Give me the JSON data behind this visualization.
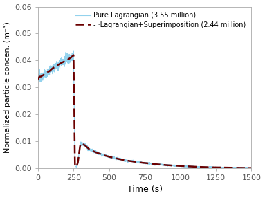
{
  "title": "",
  "xlabel": "Time (s)",
  "ylabel": "Normalized particle concen. (m⁻³)",
  "xlim": [
    0,
    1500
  ],
  "ylim": [
    0,
    0.06
  ],
  "yticks": [
    0.0,
    0.01,
    0.02,
    0.03,
    0.04,
    0.05,
    0.06
  ],
  "xticks": [
    0,
    250,
    500,
    750,
    1000,
    1250,
    1500
  ],
  "legend": [
    {
      "label": "Pure Lagrangian (3.55 million)",
      "color": "#87CEEB",
      "linestyle": "-",
      "linewidth": 0.8
    },
    {
      "label": "- ·Lagrangian+Superimposition (2.44 million)",
      "color": "#6B0000",
      "linestyle": "--",
      "linewidth": 1.8
    }
  ],
  "smooth_curve": {
    "t": [
      0,
      10,
      20,
      50,
      80,
      100,
      130,
      160,
      200,
      230,
      250,
      255,
      258,
      260,
      265,
      270,
      280,
      290,
      295,
      300,
      310,
      330,
      360,
      400,
      450,
      500,
      600,
      700,
      800,
      900,
      1000,
      1100,
      1200,
      1300,
      1400,
      1500
    ],
    "y": [
      0.033,
      0.034,
      0.034,
      0.035,
      0.036,
      0.037,
      0.038,
      0.039,
      0.04,
      0.041,
      0.042,
      0.02,
      0.005,
      0.001,
      0.0005,
      0.0005,
      0.002,
      0.006,
      0.008,
      0.009,
      0.009,
      0.0085,
      0.007,
      0.006,
      0.005,
      0.0042,
      0.003,
      0.0022,
      0.0016,
      0.0011,
      0.0008,
      0.0005,
      0.0003,
      0.0002,
      0.0001,
      5e-05
    ]
  },
  "noise_amplitude_phase1": 0.0008,
  "noise_amplitude_phase2": 0.0003,
  "background_color": "#ffffff",
  "spine_color": "#aaaaaa",
  "tick_color": "#555555",
  "tick_labelsize": 8,
  "xlabel_fontsize": 9,
  "ylabel_fontsize": 8,
  "legend_fontsize": 7
}
